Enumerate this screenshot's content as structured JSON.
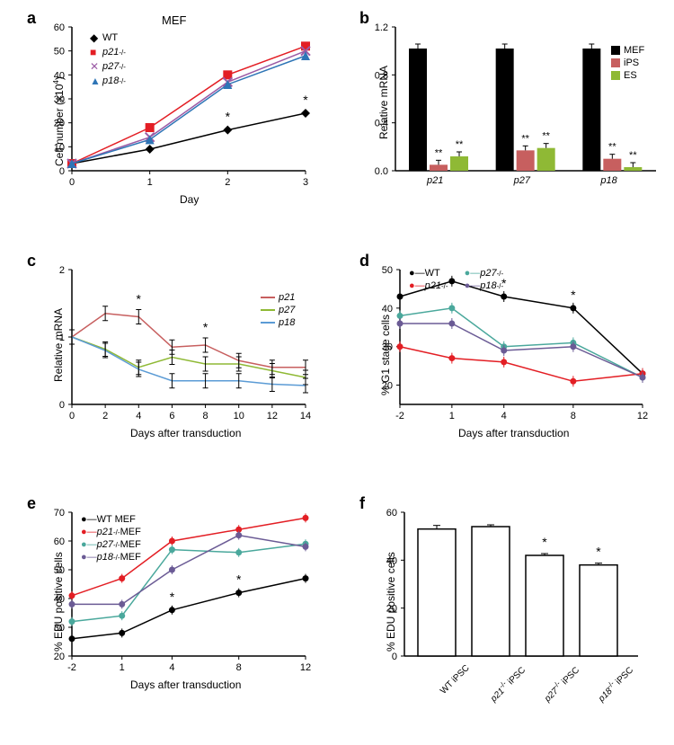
{
  "panel_a": {
    "label": "a",
    "title": "MEF",
    "xlabel": "Day",
    "ylabel": "Cell number (x10⁴)",
    "xlim": [
      0,
      3
    ],
    "ylim": [
      0,
      60
    ],
    "xtick_step": 1,
    "ytick_step": 10,
    "series": [
      {
        "name": "WT",
        "color": "#000000",
        "marker": "diamond",
        "x": [
          0,
          1,
          2,
          3
        ],
        "y": [
          3,
          9,
          17,
          24
        ]
      },
      {
        "name": "p21⁻/⁻",
        "color": "#e31e24",
        "marker": "square",
        "x": [
          0,
          1,
          2,
          3
        ],
        "y": [
          3,
          18,
          40,
          52
        ]
      },
      {
        "name": "p27⁻/⁻",
        "color": "#9b5ba5",
        "marker": "x",
        "x": [
          0,
          1,
          2,
          3
        ],
        "y": [
          3,
          14,
          37,
          50
        ]
      },
      {
        "name": "p18⁻/⁻",
        "color": "#2e75b6",
        "marker": "triangle",
        "x": [
          0,
          1,
          2,
          3
        ],
        "y": [
          3,
          13,
          36,
          48
        ]
      }
    ],
    "sig_points": [
      {
        "x": 2,
        "y": 17
      },
      {
        "x": 3,
        "y": 24
      }
    ]
  },
  "panel_b": {
    "label": "b",
    "xlabel_groups": [
      "p21",
      "p27",
      "p18"
    ],
    "ylabel": "Relative mRNA",
    "ylim": [
      0,
      1.2
    ],
    "ytick_step": 0.4,
    "series": [
      {
        "name": "MEF",
        "color": "#000000",
        "values": [
          1.02,
          1.02,
          1.02
        ]
      },
      {
        "name": "iPS",
        "color": "#c75f5f",
        "values": [
          0.05,
          0.17,
          0.1
        ]
      },
      {
        "name": "ES",
        "color": "#8fb935",
        "values": [
          0.12,
          0.19,
          0.03
        ]
      }
    ],
    "sig_all": true
  },
  "panel_c": {
    "label": "c",
    "xlabel": "Days after transduction",
    "ylabel": "Relative mRNA",
    "xlim": [
      0,
      14
    ],
    "ylim": [
      0,
      2
    ],
    "xtick_step": 2,
    "ytick_step": 1,
    "series": [
      {
        "name": "p21",
        "color": "#c75f5f",
        "x": [
          0,
          2,
          4,
          6,
          8,
          10,
          12,
          14
        ],
        "y": [
          1.0,
          1.35,
          1.3,
          0.85,
          0.88,
          0.65,
          0.55,
          0.55
        ]
      },
      {
        "name": "p27",
        "color": "#8fb935",
        "x": [
          0,
          2,
          4,
          6,
          8,
          10,
          12,
          14
        ],
        "y": [
          1.0,
          0.82,
          0.55,
          0.7,
          0.6,
          0.6,
          0.5,
          0.4
        ]
      },
      {
        "name": "p18",
        "color": "#5b9bd5",
        "x": [
          0,
          2,
          4,
          6,
          8,
          10,
          12,
          14
        ],
        "y": [
          1.0,
          0.8,
          0.52,
          0.35,
          0.35,
          0.35,
          0.3,
          0.28
        ]
      }
    ],
    "sig_points": [
      {
        "x": 4,
        "y": 1.3
      },
      {
        "x": 8,
        "y": 0.88
      }
    ]
  },
  "panel_d": {
    "label": "d",
    "xlabel": "Days after transduction",
    "ylabel": "% G1 stage cells",
    "xlim": [
      -2,
      12
    ],
    "ylim": [
      15,
      50
    ],
    "xticks": [
      -2,
      1,
      4,
      8,
      12
    ],
    "yticks": [
      20,
      30,
      40,
      50
    ],
    "series": [
      {
        "name": "WT",
        "color": "#000000",
        "x": [
          -2,
          1,
          4,
          8,
          12
        ],
        "y": [
          43,
          47,
          43,
          40,
          23
        ]
      },
      {
        "name": "p27⁻/⁻",
        "color": "#4aa89c",
        "x": [
          -2,
          1,
          4,
          8,
          12
        ],
        "y": [
          38,
          40,
          30,
          31,
          22
        ]
      },
      {
        "name": "p21⁻/⁻",
        "color": "#e31e24",
        "x": [
          -2,
          1,
          4,
          8,
          12
        ],
        "y": [
          30,
          27,
          26,
          21,
          23
        ]
      },
      {
        "name": "p18⁻/⁻",
        "color": "#6b5b95",
        "x": [
          -2,
          1,
          4,
          8,
          12
        ],
        "y": [
          36,
          36,
          29,
          30,
          22
        ]
      }
    ],
    "sig_points": [
      {
        "x": 4,
        "y": 43
      },
      {
        "x": 8,
        "y": 40
      }
    ]
  },
  "panel_e": {
    "label": "e",
    "xlabel": "Days after transduction",
    "ylabel": "% EDU positive cells",
    "xlim": [
      -2,
      12
    ],
    "ylim": [
      20,
      70
    ],
    "xticks": [
      -2,
      1,
      4,
      8,
      12
    ],
    "yticks": [
      20,
      30,
      40,
      50,
      60,
      70
    ],
    "series": [
      {
        "name": "WT MEF",
        "color": "#000000",
        "x": [
          -2,
          1,
          4,
          8,
          12
        ],
        "y": [
          26,
          28,
          36,
          42,
          47
        ]
      },
      {
        "name": "p21⁻/⁻ MEF",
        "color": "#e31e24",
        "x": [
          -2,
          1,
          4,
          8,
          12
        ],
        "y": [
          41,
          47,
          60,
          64,
          68
        ]
      },
      {
        "name": "p27⁻/⁻ MEF",
        "color": "#4aa89c",
        "x": [
          -2,
          1,
          4,
          8,
          12
        ],
        "y": [
          32,
          34,
          57,
          56,
          59
        ]
      },
      {
        "name": "p18⁻/⁻ MEF",
        "color": "#6b5b95",
        "x": [
          -2,
          1,
          4,
          8,
          12
        ],
        "y": [
          38,
          38,
          50,
          62,
          58
        ]
      }
    ],
    "sig_points": [
      {
        "x": 4,
        "y": 36
      },
      {
        "x": 8,
        "y": 42
      }
    ]
  },
  "panel_f": {
    "label": "f",
    "ylabel": "% EDU positive cells",
    "ylim": [
      0,
      60
    ],
    "ytick_step": 20,
    "categories": [
      "WT iPSC",
      "p21⁻/⁻ iPSC",
      "p27⁻/⁻ iPSC",
      "p18⁻/⁻ iPSC"
    ],
    "values": [
      53,
      54,
      42,
      38
    ],
    "errors": [
      2,
      1,
      1,
      1
    ],
    "bar_color": "#ffffff",
    "bar_border": "#000000",
    "sig_indices": [
      2,
      3
    ]
  },
  "colors": {
    "axis": "#000000",
    "grid": "#ffffff",
    "background": "#ffffff"
  }
}
